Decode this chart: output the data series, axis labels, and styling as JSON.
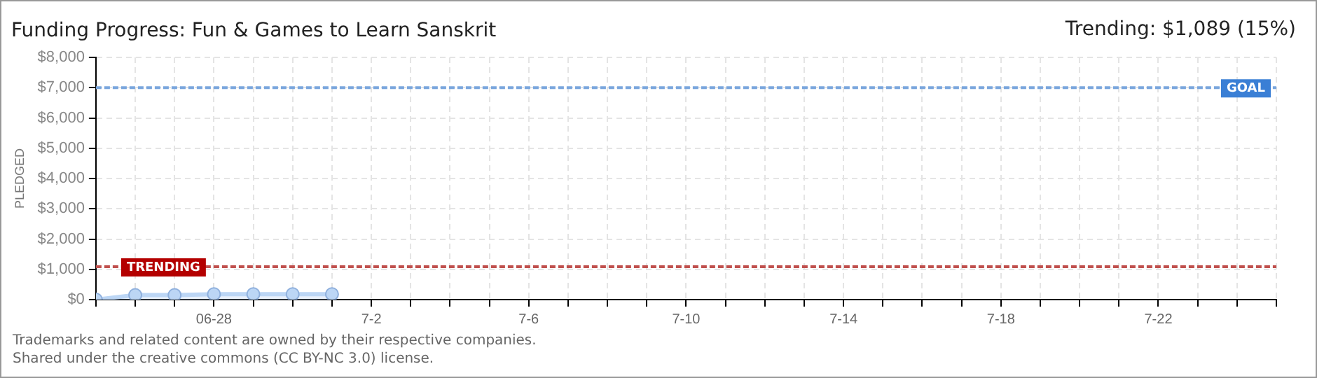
{
  "chart_data": {
    "type": "area",
    "title": "Funding Progress: Fun & Games to Learn Sanskrit",
    "subtitle": "Trending: $1,089 (15%)",
    "ylabel": "PLEDGED",
    "x": [
      "--06-25",
      "--06-26",
      "--06-27",
      "--06-28",
      "--06-29",
      "--06-30",
      "--07-01"
    ],
    "series": [
      {
        "color": "#bcd6f5",
        "values": [
          0,
          150,
          150,
          180,
          180,
          180,
          180
        ]
      }
    ],
    "marker": "circle",
    "grid": true,
    "legend": false,
    "xlim": [
      "--06-25",
      "--07-25"
    ],
    "xticks": [
      {
        "value": "--06-25",
        "label": null
      },
      {
        "value": "--06-26",
        "label": null
      },
      {
        "value": "--06-27",
        "label": null
      },
      {
        "value": "--06-28",
        "label": "06-28"
      },
      {
        "value": "--06-29",
        "label": null
      },
      {
        "value": "--06-30",
        "label": null
      },
      {
        "value": "--07-01",
        "label": null
      },
      {
        "value": "--07-02",
        "label": "7-2"
      },
      {
        "value": "--07-03",
        "label": null
      },
      {
        "value": "--07-04",
        "label": null
      },
      {
        "value": "--07-05",
        "label": null
      },
      {
        "value": "--07-06",
        "label": "7-6"
      },
      {
        "value": "--07-07",
        "label": null
      },
      {
        "value": "--07-08",
        "label": null
      },
      {
        "value": "--07-09",
        "label": null
      },
      {
        "value": "--07-10",
        "label": "7-10"
      },
      {
        "value": "--07-11",
        "label": null
      },
      {
        "value": "--07-12",
        "label": null
      },
      {
        "value": "--07-13",
        "label": null
      },
      {
        "value": "--07-14",
        "label": "7-14"
      },
      {
        "value": "--07-15",
        "label": null
      },
      {
        "value": "--07-16",
        "label": null
      },
      {
        "value": "--07-17",
        "label": null
      },
      {
        "value": "--07-18",
        "label": "7-18"
      },
      {
        "value": "--07-19",
        "label": null
      },
      {
        "value": "--07-20",
        "label": null
      },
      {
        "value": "--07-21",
        "label": null
      },
      {
        "value": "--07-22",
        "label": "7-22"
      },
      {
        "value": "--07-23",
        "label": null
      },
      {
        "value": "--07-24",
        "label": null
      },
      {
        "value": "--07-25",
        "label": null
      }
    ],
    "ylim": [
      0,
      8000
    ],
    "yticks": [
      {
        "value": 0,
        "label": "$0"
      },
      {
        "value": 1000,
        "label": "$1,000"
      },
      {
        "value": 2000,
        "label": "$2,000"
      },
      {
        "value": 3000,
        "label": "$3,000"
      },
      {
        "value": 4000,
        "label": "$4,000"
      },
      {
        "value": 5000,
        "label": "$5,000"
      },
      {
        "value": 6000,
        "label": "$6,000"
      },
      {
        "value": 7000,
        "label": "$7,000"
      },
      {
        "value": 8000,
        "label": "$8,000"
      }
    ],
    "ref_lines": [
      {
        "axis": "y",
        "value": 7000,
        "label": "GOAL",
        "color": "#7aa6dd",
        "line_style": "dashed"
      },
      {
        "axis": "y",
        "value": 1089,
        "label": "TRENDING",
        "color": "#c0504d",
        "line_style": "dashed"
      }
    ],
    "annotations": [
      "Trademarks and related content are owned by their respective companies.",
      "Shared under the creative commons (CC BY-NC 3.0) license."
    ]
  }
}
